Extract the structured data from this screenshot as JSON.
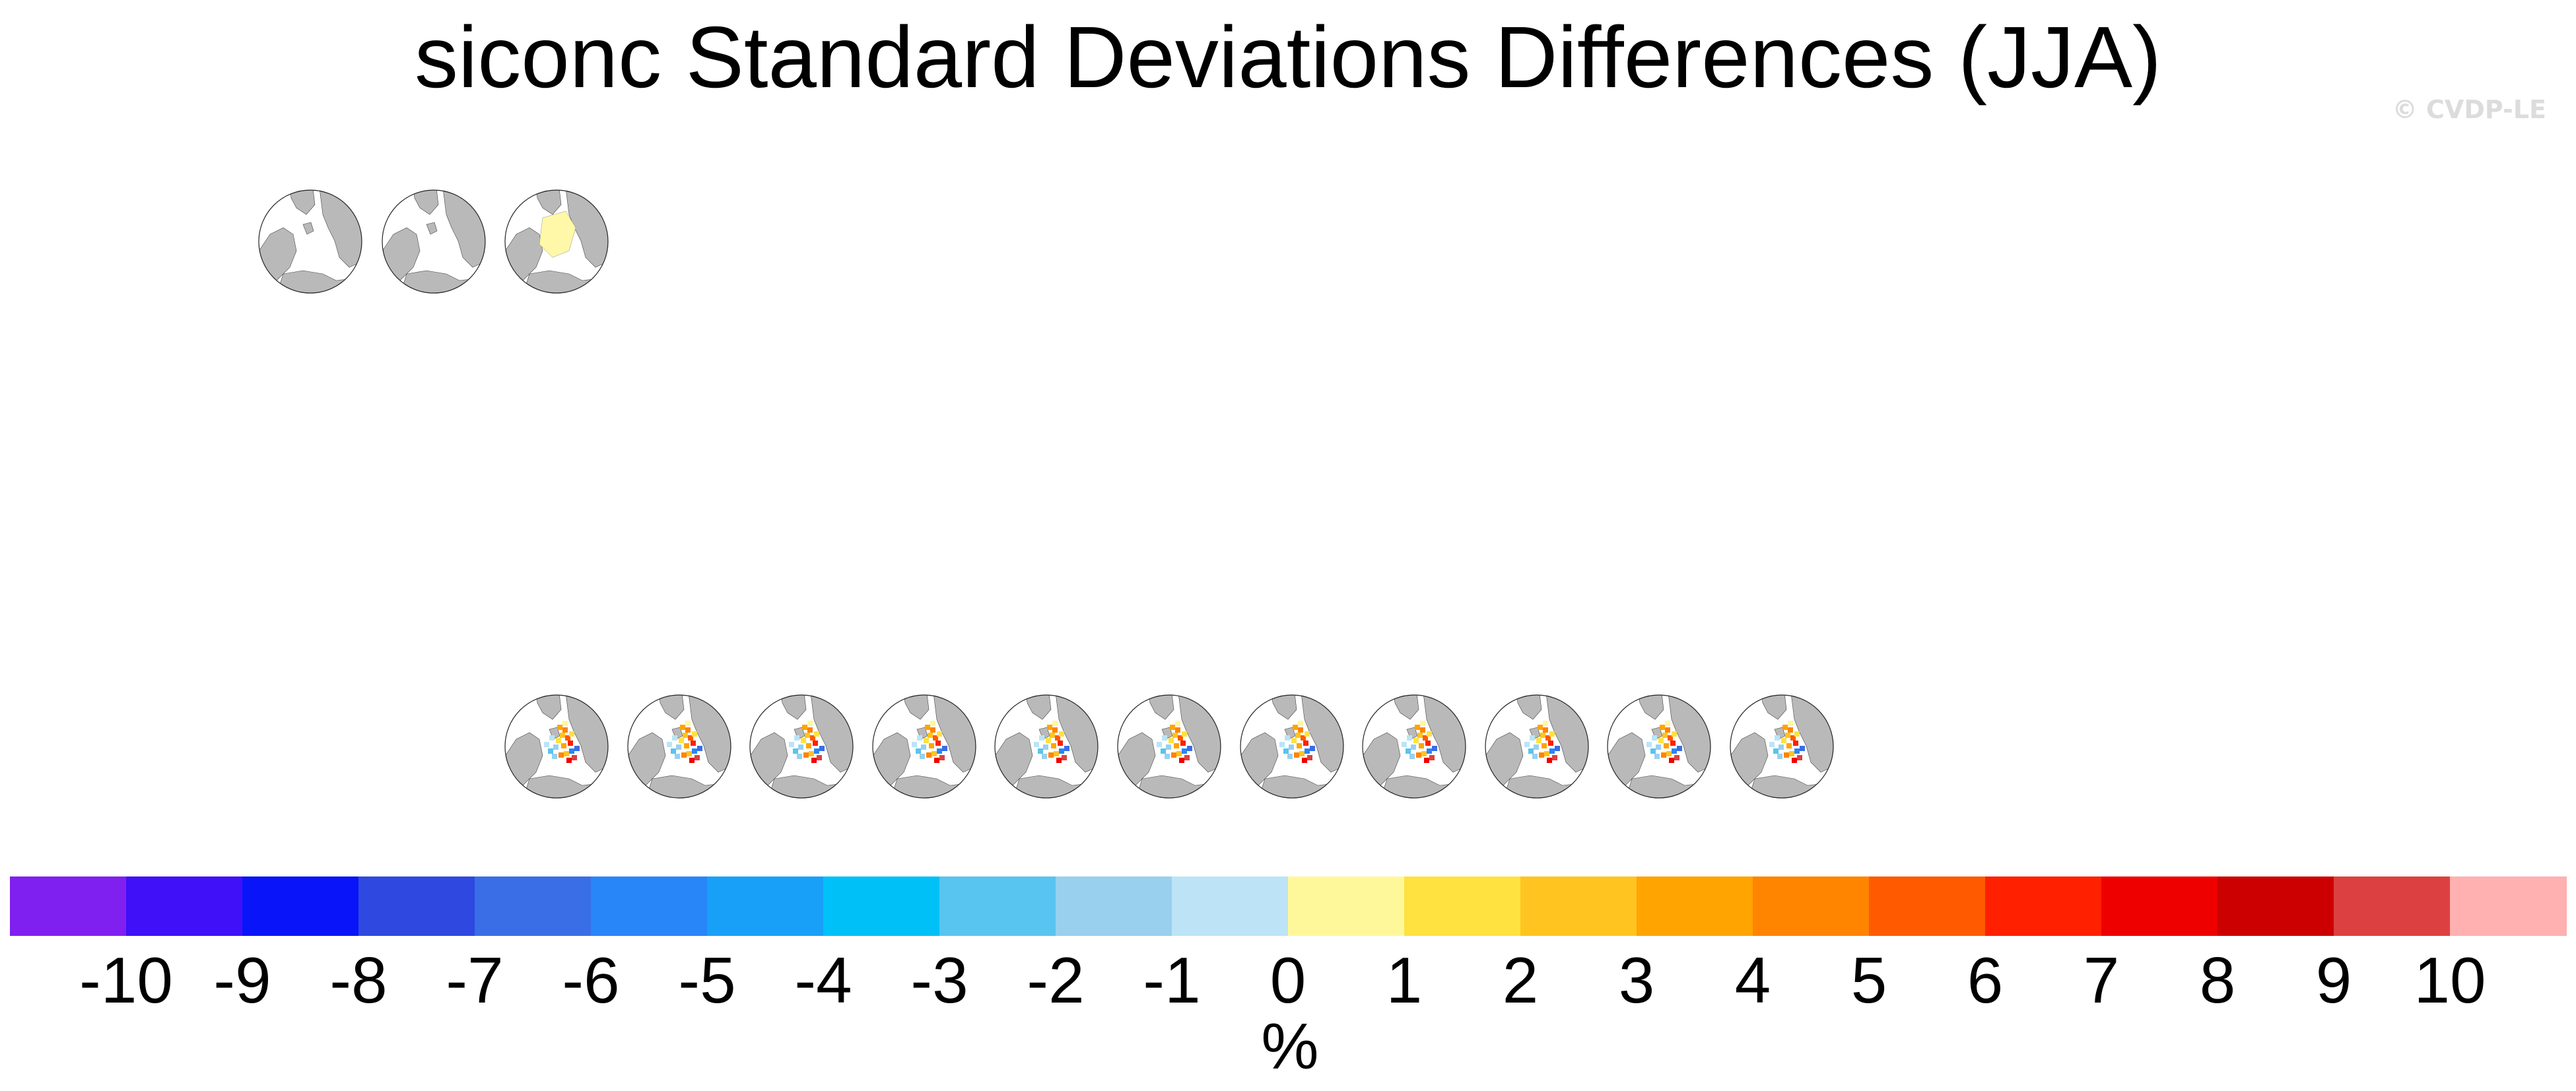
{
  "title": "siconc Standard Deviations Differences (JJA)",
  "watermark": "© CVDP-LE",
  "panels_top": [
    {
      "title": "",
      "fill": "white"
    },
    {
      "title": "",
      "fill": "white"
    },
    {
      "title": "",
      "fill": "pale-yellow"
    }
  ],
  "panels_bottom_count": 11,
  "colorbar": {
    "colors": [
      "#8020f0",
      "#4010f8",
      "#0a14f8",
      "#2e48e0",
      "#3a6ee6",
      "#2886f8",
      "#18a0f8",
      "#00c0f8",
      "#58c4f0",
      "#98d0ee",
      "#bce4f6",
      "#fff89a",
      "#ffe240",
      "#ffc420",
      "#ffa400",
      "#ff8400",
      "#ff5a00",
      "#ff2000",
      "#ee0000",
      "#cc0000",
      "#dd4040",
      "#ffb0b0"
    ],
    "labels": [
      "-10",
      "-9",
      "-8",
      "-7",
      "-6",
      "-5",
      "-4",
      "-3",
      "-2",
      "-1",
      "0",
      "1",
      "2",
      "3",
      "4",
      "5",
      "6",
      "7",
      "8",
      "9",
      "10"
    ],
    "units": "%"
  }
}
